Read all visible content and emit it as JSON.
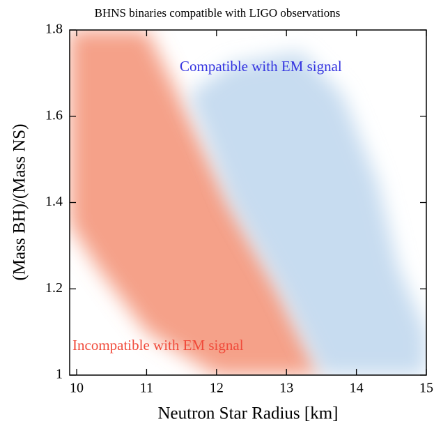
{
  "chart_data": {
    "type": "density",
    "title": "BHNS binaries compatible with LIGO observations",
    "x_label": "Neutron Star Radius [km]",
    "y_label": "(Mass BH)/(Mass NS)",
    "xlim": [
      9.9,
      15
    ],
    "ylim": [
      1,
      1.8
    ],
    "xticks": [
      10,
      11,
      12,
      13,
      14,
      15
    ],
    "yticks": [
      1,
      1.2,
      1.4,
      1.6,
      1.8
    ],
    "series": [
      {
        "name": "Incompatible with EM signal",
        "color": "#f3896b",
        "x": [
          9.9,
          11.0,
          11.6,
          12.2,
          12.9,
          13.5,
          12.0,
          11.0,
          10.3,
          9.9
        ],
        "y": [
          1.8,
          1.8,
          1.6,
          1.4,
          1.2,
          1.0,
          1.0,
          1.1,
          1.25,
          1.35
        ]
      },
      {
        "name": "Compatible with EM signal",
        "color": "#b9d3ec",
        "x": [
          11.6,
          12.2,
          13.2,
          13.8,
          14.3,
          14.6,
          15.0,
          15.0,
          13.5,
          12.9,
          12.2
        ],
        "y": [
          1.65,
          1.72,
          1.75,
          1.65,
          1.45,
          1.25,
          1.1,
          1.0,
          1.0,
          1.2,
          1.4
        ]
      }
    ]
  }
}
